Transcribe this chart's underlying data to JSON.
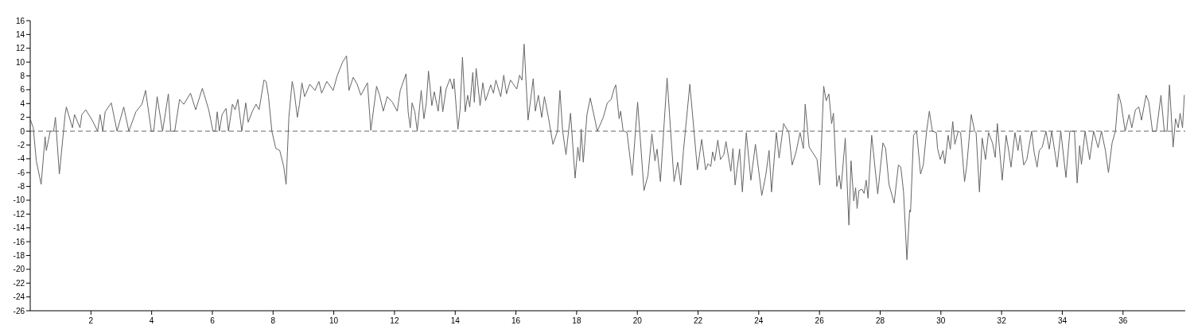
{
  "chart_data": {
    "type": "line",
    "x": [
      0.01,
      0.1,
      0.2,
      0.36,
      0.49,
      0.53,
      0.66,
      0.77,
      0.83,
      0.96,
      1.15,
      1.19,
      1.39,
      1.46,
      1.64,
      1.7,
      1.83,
      2.04,
      2.22,
      2.3,
      2.39,
      2.47,
      2.67,
      2.86,
      3.08,
      3.25,
      3.48,
      3.68,
      3.8,
      3.99,
      4.07,
      4.18,
      4.36,
      4.55,
      4.63,
      4.76,
      4.92,
      5.06,
      5.28,
      5.45,
      5.67,
      5.88,
      6.02,
      6.1,
      6.16,
      6.23,
      6.32,
      6.45,
      6.53,
      6.66,
      6.75,
      6.84,
      6.97,
      7.1,
      7.18,
      7.31,
      7.44,
      7.54,
      7.7,
      7.77,
      7.85,
      7.96,
      8.09,
      8.22,
      8.35,
      8.43,
      8.52,
      8.63,
      8.69,
      8.8,
      8.87,
      8.95,
      9.04,
      9.21,
      9.38,
      9.51,
      9.6,
      9.77,
      9.98,
      10.11,
      10.29,
      10.42,
      10.5,
      10.64,
      10.77,
      10.89,
      11.11,
      11.22,
      11.41,
      11.51,
      11.63,
      11.76,
      11.93,
      12.09,
      12.19,
      12.38,
      12.45,
      12.52,
      12.58,
      12.67,
      12.75,
      12.88,
      12.97,
      13.05,
      13.12,
      13.23,
      13.31,
      13.44,
      13.52,
      13.59,
      13.7,
      13.83,
      13.92,
      13.96,
      14.09,
      14.16,
      14.24,
      14.33,
      14.41,
      14.48,
      14.58,
      14.63,
      14.69,
      14.82,
      14.91,
      15.0,
      15.17,
      15.26,
      15.34,
      15.5,
      15.6,
      15.69,
      15.82,
      16.03,
      16.12,
      16.2,
      16.27,
      16.4,
      16.57,
      16.64,
      16.74,
      16.85,
      16.94,
      17.07,
      17.22,
      17.37,
      17.45,
      17.54,
      17.65,
      17.8,
      17.95,
      18.04,
      18.1,
      18.15,
      18.22,
      18.34,
      18.45,
      18.62,
      18.68,
      18.88,
      19.01,
      19.14,
      19.23,
      19.29,
      19.4,
      19.45,
      19.53,
      19.66,
      19.83,
      20.01,
      20.22,
      20.35,
      20.48,
      20.58,
      20.65,
      20.76,
      20.98,
      21.21,
      21.33,
      21.43,
      21.52,
      21.73,
      21.98,
      22.12,
      22.25,
      22.33,
      22.42,
      22.48,
      22.55,
      22.65,
      22.74,
      22.85,
      22.92,
      23.08,
      23.15,
      23.22,
      23.37,
      23.46,
      23.59,
      23.74,
      23.89,
      24.1,
      24.23,
      24.34,
      24.42,
      24.58,
      24.67,
      24.82,
      24.99,
      25.1,
      25.23,
      25.36,
      25.47,
      25.53,
      25.66,
      25.79,
      25.92,
      26.01,
      26.14,
      26.22,
      26.31,
      26.4,
      26.46,
      26.57,
      26.65,
      26.71,
      26.85,
      26.97,
      27.04,
      27.13,
      27.19,
      27.24,
      27.3,
      27.4,
      27.47,
      27.54,
      27.6,
      27.72,
      27.92,
      28.09,
      28.18,
      28.29,
      28.46,
      28.6,
      28.68,
      28.77,
      28.88,
      28.97,
      29.0,
      29.1,
      29.2,
      29.33,
      29.42,
      29.53,
      29.62,
      29.72,
      29.85,
      29.89,
      29.98,
      30.07,
      30.13,
      30.24,
      30.31,
      30.39,
      30.46,
      30.57,
      30.65,
      30.78,
      30.85,
      31.0,
      31.11,
      31.16,
      31.27,
      31.36,
      31.47,
      31.57,
      31.7,
      31.79,
      31.86,
      32.02,
      32.15,
      32.24,
      32.31,
      32.44,
      32.54,
      32.61,
      32.73,
      32.83,
      32.99,
      33.07,
      33.17,
      33.24,
      33.34,
      33.46,
      33.57,
      33.65,
      33.83,
      33.95,
      34.12,
      34.25,
      34.4,
      34.49,
      34.57,
      34.63,
      34.75,
      34.9,
      35.03,
      35.18,
      35.29,
      35.42,
      35.52,
      35.64,
      35.75,
      35.85,
      35.94,
      36.07,
      36.2,
      36.29,
      36.41,
      36.52,
      36.61,
      36.76,
      36.85,
      36.97,
      37.1,
      37.25,
      37.36,
      37.45,
      37.53,
      37.65,
      37.73,
      37.82,
      37.88,
      37.96,
      38.02
    ],
    "series": [
      {
        "color": "#666666",
        "values": [
          1.6,
          0.5,
          -4.3,
          -7.7,
          -0.8,
          -2.8,
          0,
          0,
          2.0,
          -6.2,
          2.4,
          3.5,
          0.5,
          2.4,
          0.5,
          2.4,
          3.1,
          1.6,
          0,
          2.4,
          0,
          2.8,
          4.1,
          0,
          3.5,
          0,
          2.8,
          3.9,
          5.9,
          0,
          0,
          5.0,
          0,
          5.4,
          0,
          0,
          4.6,
          3.9,
          5.5,
          3.1,
          6.2,
          3.1,
          0,
          0,
          2.8,
          0,
          2.4,
          3.3,
          0,
          3.9,
          3.1,
          4.6,
          0,
          4.1,
          1.3,
          2.8,
          3.9,
          3.1,
          7.4,
          7.2,
          5.0,
          0,
          -2.5,
          -2.8,
          -5.1,
          -7.7,
          2.0,
          7.2,
          5.9,
          2.0,
          3.9,
          7.0,
          5.0,
          6.8,
          5.9,
          7.2,
          5.5,
          7.2,
          5.9,
          8.0,
          10.0,
          10.9,
          5.9,
          7.8,
          6.8,
          5.2,
          7.0,
          0.1,
          6.5,
          5.2,
          2.9,
          5.0,
          4.2,
          2.9,
          5.9,
          8.3,
          2.8,
          0.5,
          4.1,
          2.8,
          0,
          5.9,
          1.8,
          4.2,
          8.7,
          3.7,
          5.7,
          2.9,
          6.5,
          2.8,
          6.1,
          7.6,
          6.1,
          7.6,
          0.3,
          3.1,
          10.7,
          2.8,
          5.2,
          3.5,
          8.5,
          4.2,
          9.1,
          3.7,
          7.0,
          4.4,
          6.7,
          5.5,
          7.4,
          5.0,
          8.1,
          5.4,
          7.4,
          6.1,
          8.1,
          7.4,
          12.6,
          1.6,
          7.6,
          2.9,
          5.2,
          2.0,
          5.0,
          2.0,
          -1.9,
          0,
          5.9,
          0,
          -3.4,
          2.6,
          -6.8,
          -2.3,
          -4.3,
          0.3,
          -4.5,
          2.4,
          4.8,
          1.3,
          0,
          2.0,
          4.1,
          4.6,
          6.1,
          6.7,
          1.8,
          2.9,
          0.1,
          -0.2,
          -6.4,
          4.2,
          -8.6,
          -6.4,
          -0.4,
          -4.3,
          -2.6,
          -7.3,
          7.7,
          -7.3,
          -4.5,
          -7.8,
          -2.8,
          6.8,
          -5.6,
          -1.2,
          -5.6,
          -4.7,
          -5.1,
          -3.0,
          -4.3,
          -1.3,
          -4.1,
          -3.4,
          -1.5,
          -5.8,
          -2.5,
          -7.8,
          -2.6,
          -8.8,
          -0.2,
          -7.1,
          -1.9,
          -9.3,
          -6.4,
          -2.8,
          -8.8,
          -0.2,
          -3.9,
          1.1,
          -0.2,
          -4.9,
          -3.0,
          -0.2,
          -2.5,
          3.9,
          -2.3,
          -3.2,
          -4.1,
          -7.8,
          6.5,
          4.4,
          5.4,
          1.1,
          2.6,
          -8.0,
          -6.4,
          -8.4,
          -1.0,
          -13.6,
          -4.3,
          -10.1,
          -8.2,
          -11.2,
          -8.6,
          -8.4,
          -9.0,
          -7.1,
          -9.7,
          -0.6,
          -9.1,
          -1.7,
          -2.5,
          -7.7,
          -10.4,
          -4.9,
          -5.2,
          -8.8,
          -18.6,
          -11.4,
          -11.7,
          -0.6,
          0,
          -6.2,
          -4.9,
          0,
          2.9,
          0,
          -0.2,
          -2.5,
          -4.1,
          -2.8,
          -4.7,
          -0.6,
          -2.6,
          1.4,
          -1.9,
          0,
          -0.2,
          -7.3,
          -5.1,
          2.4,
          0,
          -0.2,
          -8.8,
          -1.0,
          -4.1,
          -0.2,
          -1.7,
          -3.8,
          1.1,
          -7.1,
          -0.6,
          -3.0,
          -5.2,
          -0.2,
          -2.8,
          -0.6,
          -4.9,
          -4.1,
          0,
          -3.0,
          -5.2,
          -2.8,
          -2.3,
          0,
          -2.6,
          0,
          -5.2,
          0,
          -6.7,
          0,
          0,
          -7.5,
          -2.1,
          -4.8,
          0,
          -4.1,
          0,
          -2.4,
          0,
          -2.8,
          -6.0,
          -1.7,
          0,
          5.4,
          3.9,
          0,
          2.4,
          0.5,
          3.1,
          3.5,
          1.6,
          5.2,
          4.2,
          0,
          0,
          5.2,
          0,
          0,
          6.7,
          -2.3,
          1.8,
          0.5,
          2.6,
          0.5,
          5.2
        ]
      }
    ],
    "xlim": [
      0,
      38.05
    ],
    "xticks": [
      2,
      4,
      6,
      8,
      10,
      12,
      14,
      16,
      18,
      20,
      22,
      24,
      26,
      28,
      30,
      32,
      34,
      36
    ],
    "ylim": [
      -26,
      16
    ],
    "yticks": [
      -26,
      -24,
      -22,
      -20,
      -18,
      -16,
      -14,
      -12,
      -10,
      -8,
      -6,
      -4,
      -2,
      0,
      2,
      4,
      6,
      8,
      10,
      12,
      14,
      16
    ],
    "ref_lines": [
      {
        "axis": "y",
        "value": 0,
        "color": "#666666",
        "line_style": "dashed"
      }
    ],
    "grid": false,
    "line_style": "solid"
  }
}
